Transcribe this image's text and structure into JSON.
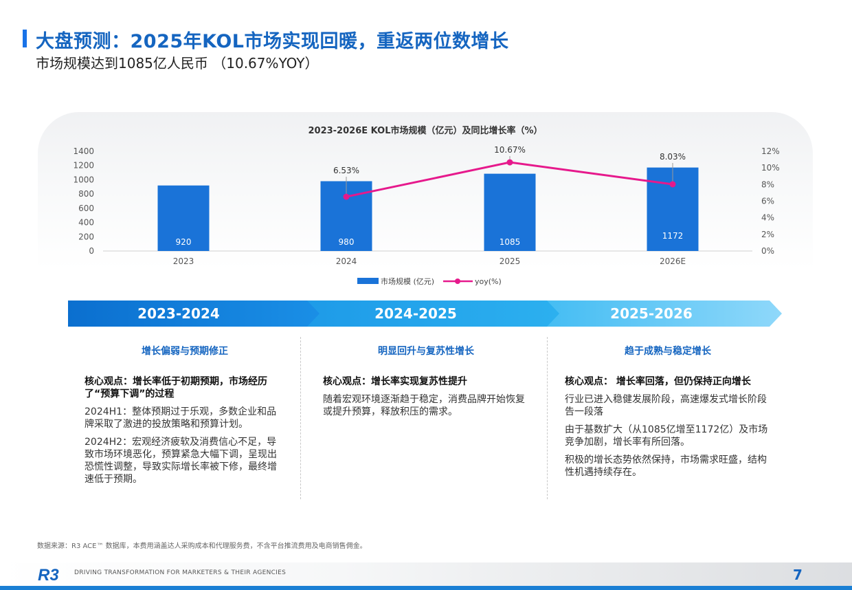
{
  "header": {
    "title": "大盘预测：2025年KOL市场实现回暖，重返两位数增长",
    "subtitle": "市场规模达到1085亿人民币 （10.67%YOY）"
  },
  "chart_data": {
    "type": "bar",
    "title": "2023-2026E KOL市场规模（亿元）及同比增长率（%）",
    "categories": [
      "2023",
      "2024",
      "2025",
      "2026E"
    ],
    "series": [
      {
        "name": "市场规模 (亿元)",
        "type": "bar",
        "axis": "left",
        "color": "#1a73d8",
        "values": [
          920,
          980,
          1085,
          1172
        ],
        "labels": [
          "920",
          "980",
          "1085",
          "1172"
        ]
      },
      {
        "name": "yoy(%)",
        "type": "line",
        "axis": "right",
        "color": "#e6198c",
        "values": [
          null,
          6.53,
          10.67,
          8.03
        ],
        "labels": [
          "",
          "6.53%",
          "10.67%",
          "8.03%"
        ]
      }
    ],
    "ylim_left": [
      0,
      1400
    ],
    "yticks_left": [
      "0",
      "200",
      "400",
      "600",
      "800",
      "1000",
      "1200",
      "1400"
    ],
    "ylim_right": [
      0,
      12
    ],
    "yticks_right": [
      "0%",
      "2%",
      "4%",
      "6%",
      "8%",
      "10%",
      "12%"
    ],
    "grid": false,
    "legend": "bottom"
  },
  "phases": [
    {
      "label": "2023-2024",
      "color_start": "#0b6fcf",
      "color_end": "#1a8fe6",
      "heading": "增长偏弱与预期修正",
      "key_point": "核心观点：增长率低于初期预期，市场经历了“预算下调”的过程",
      "paragraphs": [
        "2024H1：整体预期过于乐观，多数企业和品牌采取了激进的投放策略和预算计划。",
        "2024H2：宏观经济疲软及消费信心不足，导致市场环境恶化，预算紧急大幅下调，呈现出恐慌性调整，导致实际增长率被下修，最终增速低于预期。"
      ]
    },
    {
      "label": "2024-2025",
      "color_start": "#1e9be8",
      "color_end": "#2cb0ef",
      "heading": "明显回升与复苏性增长",
      "key_point": "核心观点：增长率实现复苏性提升",
      "paragraphs": [
        "随着宏观环境逐渐趋于稳定，消费品牌开始恢复或提升预算，释放积压的需求。"
      ]
    },
    {
      "label": "2025-2026",
      "color_start": "#45bdf3",
      "color_end": "#8fd8fa",
      "heading": "趋于成熟与稳定增长",
      "key_point": "核心观点： 增长率回落，但仍保持正向增长",
      "paragraphs": [
        "行业已进入稳健发展阶段，高速爆发式增长阶段告一段落",
        "由于基数扩大（从1085亿增至1172亿）及市场竞争加剧，增长率有所回落。",
        "积极的增长态势依然保持，市场需求旺盛，结构性机遇持续存在。"
      ]
    }
  ],
  "footer": {
    "source": "数据来源：R3 ACE™ 数据库，本费用涵盖达人采购成本和代理服务费，不含平台推流费用及电商销售佣金。",
    "logo_text": "R3",
    "tagline": "DRIVING TRANSFORMATION FOR MARKETERS & THEIR AGENCIES",
    "page_number": "7"
  }
}
